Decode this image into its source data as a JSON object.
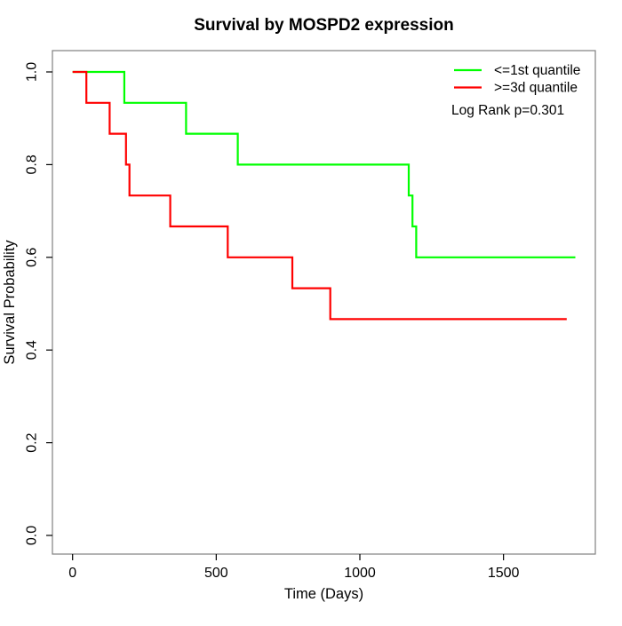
{
  "chart_data": {
    "type": "line",
    "variant": "kaplan-meier-step",
    "title": "Survival by MOSPD2 expression",
    "xlabel": "Time (Days)",
    "ylabel": "Survival Probability",
    "xlim": [
      0,
      1760
    ],
    "ylim": [
      0.0,
      1.0
    ],
    "x_ticks": [
      0,
      500,
      1000,
      1500
    ],
    "y_ticks": [
      0.0,
      0.2,
      0.4,
      0.6,
      0.8,
      1.0
    ],
    "grid": false,
    "legend_position": "top-right",
    "annotation": "Log Rank p=0.301",
    "series": [
      {
        "name": "<=1st quantile",
        "color": "#00ff00",
        "steps": [
          [
            0,
            1.0
          ],
          [
            180,
            0.9333
          ],
          [
            395,
            0.8667
          ],
          [
            575,
            0.8
          ],
          [
            1170,
            0.7333
          ],
          [
            1183,
            0.6667
          ],
          [
            1196,
            0.6
          ]
        ],
        "end_time": 1750,
        "final_survival": 0.6
      },
      {
        "name": ">=3d quantile",
        "color": "#ff0000",
        "steps": [
          [
            0,
            1.0
          ],
          [
            48,
            0.9333
          ],
          [
            129,
            0.8667
          ],
          [
            186,
            0.8
          ],
          [
            198,
            0.7333
          ],
          [
            340,
            0.6667
          ],
          [
            540,
            0.6
          ],
          [
            765,
            0.5333
          ],
          [
            897,
            0.4667
          ]
        ],
        "end_time": 1720,
        "final_survival": 0.4667
      }
    ]
  }
}
